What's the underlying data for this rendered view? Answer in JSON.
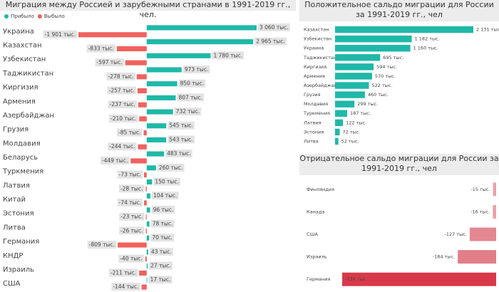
{
  "chart_data": [
    {
      "type": "bar",
      "title": "Миграция между Россией и зарубежными странами в 1991-2019 гг., чел.",
      "categories": [
        "Украина",
        "Казахстан",
        "Узбекистан",
        "Таджикистан",
        "Киргизия",
        "Армения",
        "Азербайджан",
        "Грузия",
        "Молдавия",
        "Беларусь",
        "Туркмения",
        "Латвия",
        "Китай",
        "Эстония",
        "Литва",
        "Германия",
        "КНДР",
        "Израиль",
        "США"
      ],
      "series": [
        {
          "name": "Прибыло",
          "color": "#1fb8a8",
          "values": [
            3060,
            2965,
            1780,
            973,
            850,
            807,
            732,
            545,
            543,
            483,
            260,
            150,
            104,
            96,
            78,
            70,
            43,
            27,
            17
          ],
          "value_labels": [
            "3 060 тыс.",
            "2 965 тыс.",
            "1 780 тыс.",
            "973 тыс.",
            "850 тыс.",
            "807 тыс.",
            "732 тыс.",
            "545 тыс.",
            "543 тыс.",
            "483 тыс.",
            "260 тыс.",
            "150 тыс.",
            "104 тыс.",
            "96 тыс.",
            "78 тыс.",
            "70 тыс.",
            "43 тыс.",
            "27 тыс.",
            "17 тыс."
          ]
        },
        {
          "name": "Выбыло",
          "color": "#f0625f",
          "values": [
            -1901,
            -833,
            -597,
            -278,
            -257,
            -237,
            -210,
            -85,
            -244,
            -449,
            -73,
            -28,
            -74,
            -23,
            -26,
            -809,
            -40,
            -211,
            -144
          ],
          "value_labels": [
            "-1 901 тыс.",
            "-833 тыс.",
            "-597 тыс.",
            "-278 тыс.",
            "-257 тыс.",
            "-237 тыс.",
            "-210 тыс.",
            "-85 тыс.",
            "-244 тыс.",
            "-449 тыс.",
            "-73 тыс.",
            "-28 тыс.",
            "-74 тыс.",
            "-23 тыс.",
            "-26 тыс.",
            "-809 тыс.",
            "-40 тыс.",
            "-211 тыс.",
            "-144 тыс."
          ]
        }
      ]
    },
    {
      "type": "bar",
      "title": "Положительное сальдо миграции для России за 1991-2019 гг., чел",
      "categories": [
        "Казахстан",
        "Узбекистан",
        "Украина",
        "Таджикистан",
        "Киргизия",
        "Армения",
        "Азербайджан",
        "Грузия",
        "Молдавия",
        "Туркмения",
        "Латвия",
        "Эстония",
        "Литва"
      ],
      "series": [
        {
          "color": "#1fb8a8",
          "values": [
            2131,
            1182,
            1160,
            695,
            594,
            570,
            522,
            460,
            299,
            187,
            122,
            72,
            52
          ],
          "value_labels": [
            "2 131 тыс.",
            "1 182 тыс.",
            "1 160 тыс.",
            "695 тыс.",
            "594 тыс.",
            "570 тыс.",
            "522 тыс.",
            "460 тыс.",
            "299 тыс.",
            "187 тыс.",
            "122 тыс.",
            "72 тыс.",
            "52 тыс."
          ]
        }
      ]
    },
    {
      "type": "bar",
      "title": "Отрицательное сальдо миграции для России за 1991-2019 гг., чел",
      "categories": [
        "Финляндия",
        "Канада",
        "США",
        "Израиль",
        "Германия"
      ],
      "series": [
        {
          "colors": [
            "#eaa1a8",
            "#eaa1a8",
            "#e48790",
            "#e27e88",
            "#d8394a"
          ],
          "values": [
            -15,
            -16,
            -127,
            -184,
            -739
          ],
          "value_labels": [
            "-15 тыс.",
            "-16 тыс.",
            "-127 тыс.",
            "-184 тыс.",
            "-739 тыс."
          ]
        }
      ]
    }
  ]
}
